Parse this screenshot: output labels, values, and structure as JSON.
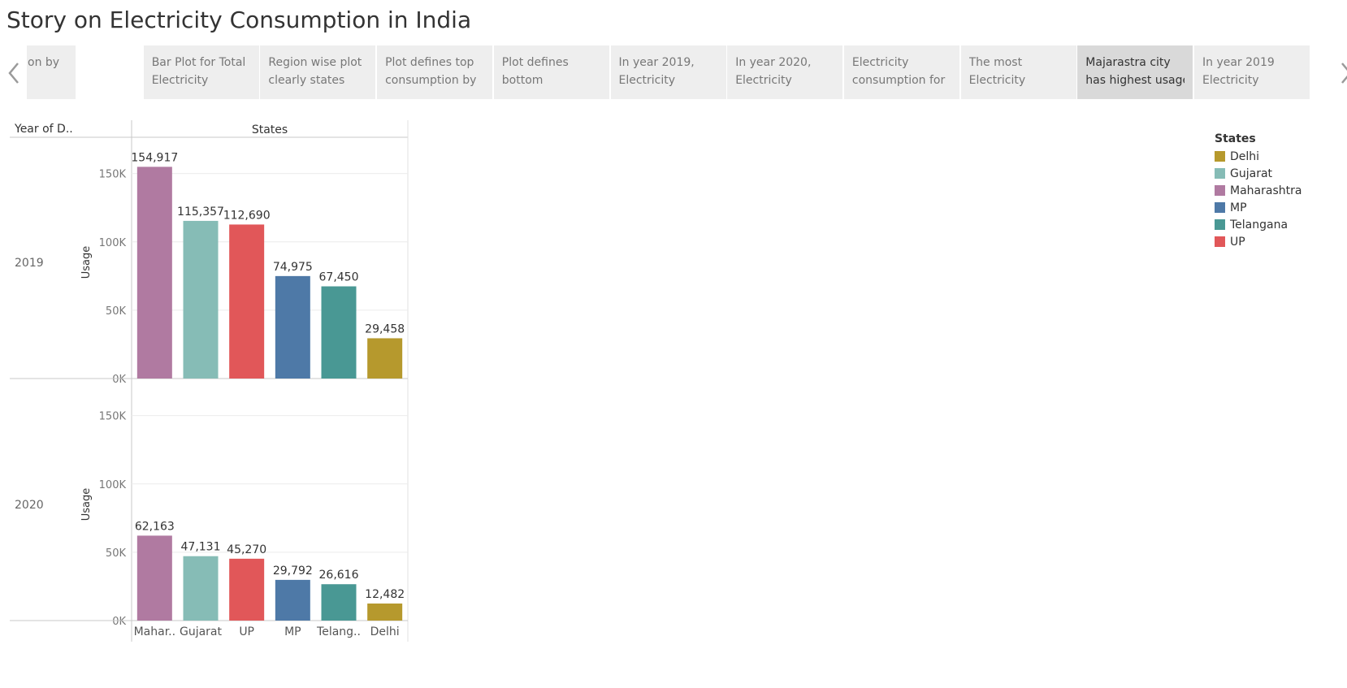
{
  "page": {
    "title": "Story on Electricity Consumption in India"
  },
  "story_nav": {
    "prev_icon": "chevron-left-icon",
    "next_icon": "chevron-right-icon",
    "points": [
      {
        "line1": "",
        "line2": "on by",
        "active": false
      },
      {
        "line1": "Bar Plot for Total",
        "line2": "Electricity",
        "active": false
      },
      {
        "line1": "Region wise plot",
        "line2": "clearly states",
        "active": false
      },
      {
        "line1": "Plot defines top",
        "line2": "consumption by",
        "active": false
      },
      {
        "line1": "Plot defines",
        "line2": "bottom",
        "active": false
      },
      {
        "line1": "In year 2019,",
        "line2": "Electricity",
        "active": false
      },
      {
        "line1": "In year 2020,",
        "line2": "Electricity",
        "active": false
      },
      {
        "line1": "Electricity",
        "line2": "consumption for",
        "active": false
      },
      {
        "line1": "The most",
        "line2": "Electricity",
        "active": false
      },
      {
        "line1": "Majarastra city",
        "line2": "has highest usage",
        "active": true
      },
      {
        "line1": "In year 2019",
        "line2": "Electricity",
        "active": false
      }
    ]
  },
  "colors": {
    "Maharashtra": "#b07aa1",
    "Gujarat": "#86bcb6",
    "UP": "#e15759",
    "MP": "#4e79a7",
    "Telangana": "#499894",
    "Delhi": "#b6992d"
  },
  "chart_data": {
    "type": "bar",
    "row_header": "Year of D..",
    "column_header": "States",
    "ylabel": "Usage",
    "ylim": [
      0,
      170000
    ],
    "yticks": [
      0,
      50000,
      100000,
      150000
    ],
    "ytick_labels": [
      "0K",
      "50K",
      "100K",
      "150K"
    ],
    "categories": [
      "Maharashtra",
      "Gujarat",
      "UP",
      "MP",
      "Telangana",
      "Delhi"
    ],
    "category_labels": [
      "Mahar..",
      "Gujarat",
      "UP",
      "MP",
      "Telang..",
      "Delhi"
    ],
    "panels": [
      {
        "year": "2019",
        "values": [
          154917,
          115357,
          112690,
          74975,
          67450,
          29458
        ],
        "labels": [
          "154,917",
          "115,357",
          "112,690",
          "74,975",
          "67,450",
          "29,458"
        ]
      },
      {
        "year": "2020",
        "values": [
          62163,
          47131,
          45270,
          29792,
          26616,
          12482
        ],
        "labels": [
          "62,163",
          "47,131",
          "45,270",
          "29,792",
          "26,616",
          "12,482"
        ]
      }
    ]
  },
  "legend": {
    "title": "States",
    "items": [
      "Delhi",
      "Gujarat",
      "Maharashtra",
      "MP",
      "Telangana",
      "UP"
    ]
  }
}
